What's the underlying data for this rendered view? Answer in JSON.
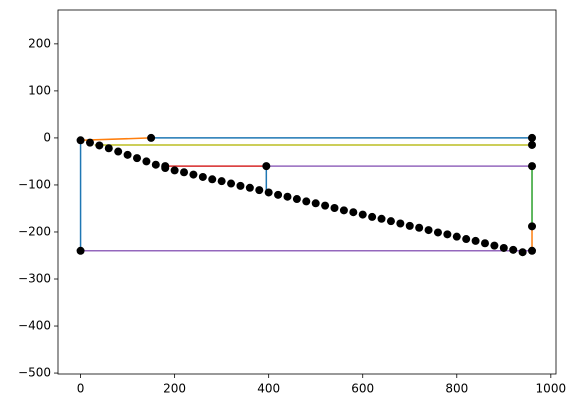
{
  "chart_data": {
    "type": "line",
    "xlim": [
      -48,
      1011
    ],
    "ylim": [
      -502,
      272
    ],
    "xticks": [
      0,
      200,
      400,
      600,
      800,
      1000
    ],
    "yticks": [
      200,
      100,
      0,
      {
        "value": -100,
        "label": "−100"
      },
      {
        "value": -200,
        "label": "−200"
      },
      {
        "value": -300,
        "label": "−300"
      },
      {
        "value": -400,
        "label": "−400"
      },
      {
        "value": -500,
        "label": "−500"
      }
    ],
    "grid": false,
    "series": [
      {
        "kind": "line",
        "color": "#1f77b4",
        "x": [
          0,
          0,
          null,
          150,
          960,
          null,
          395,
          395
        ],
        "values": [
          -240,
          -5,
          null,
          0,
          0,
          null,
          -60,
          -112
        ]
      },
      {
        "kind": "line",
        "color": "#ff7f0e",
        "x": [
          0,
          150,
          null,
          960,
          960
        ],
        "values": [
          -5,
          0,
          null,
          -188,
          -240
        ]
      },
      {
        "kind": "line",
        "color": "#bcbd22",
        "x": [
          30,
          960
        ],
        "values": [
          -15,
          -15
        ]
      },
      {
        "kind": "line",
        "color": "#d62728",
        "x": [
          180,
          395
        ],
        "values": [
          -60,
          -60
        ]
      },
      {
        "kind": "line",
        "color": "#9467bd",
        "x": [
          395,
          960,
          null,
          0,
          960
        ],
        "values": [
          -60,
          -60,
          null,
          -240,
          -240
        ]
      },
      {
        "kind": "line",
        "color": "#2ca02c",
        "x": [
          960,
          960
        ],
        "values": [
          -60,
          -188
        ]
      },
      {
        "kind": "line",
        "color": "#17becf",
        "x": [
          960,
          960
        ],
        "values": [
          0,
          -15
        ]
      },
      {
        "kind": "scatter",
        "color": "#000000",
        "x": [
          0,
          20,
          40,
          60,
          80,
          100,
          120,
          140,
          160,
          180,
          200,
          220,
          240,
          260,
          280,
          300,
          320,
          340,
          360,
          380,
          400,
          420,
          440,
          460,
          480,
          500,
          520,
          540,
          560,
          580,
          600,
          620,
          640,
          660,
          680,
          700,
          720,
          740,
          760,
          780,
          800,
          820,
          840,
          860,
          880,
          900,
          920,
          940,
          150,
          960,
          960,
          960,
          960,
          960,
          395,
          180,
          0
        ],
        "values": [
          -5,
          -10,
          -16,
          -22,
          -29,
          -36,
          -43,
          -50,
          -57,
          -64,
          -69,
          -73,
          -78,
          -83,
          -88,
          -92,
          -97,
          -102,
          -106,
          -111,
          -116,
          -121,
          -125,
          -130,
          -135,
          -139,
          -144,
          -149,
          -154,
          -158,
          -163,
          -168,
          -172,
          -177,
          -182,
          -187,
          -191,
          -196,
          -201,
          -205,
          -210,
          -215,
          -219,
          -224,
          -229,
          -234,
          -238,
          -243,
          0,
          0,
          -15,
          -60,
          -188,
          -240,
          -60,
          -60,
          -240
        ]
      }
    ]
  }
}
